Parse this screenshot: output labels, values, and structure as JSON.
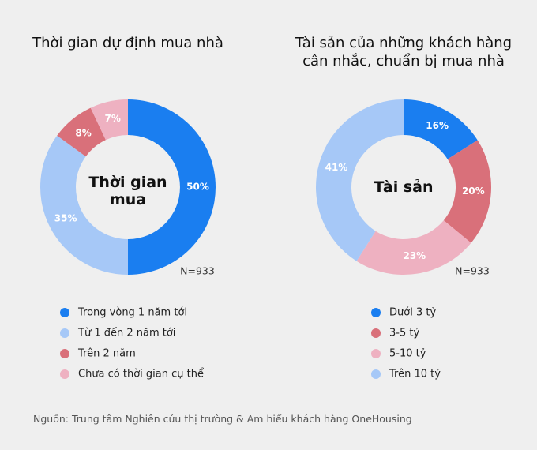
{
  "chart_data": [
    {
      "type": "donut",
      "title": "Thời gian dự định mua nhà",
      "center_label": "Thời gian mua",
      "note": "N=933",
      "categories": [
        "Trong vòng 1 năm tới",
        "Từ 1 đến 2 năm tới",
        "Trên 2 năm",
        "Chưa có thời gian cụ thể"
      ],
      "values": [
        50,
        35,
        8,
        7
      ],
      "value_labels": [
        "50%",
        "35%",
        "8%",
        "7%"
      ],
      "colors": [
        "#1a7ef0",
        "#a6c8f7",
        "#d9707a",
        "#eeb1c1"
      ]
    },
    {
      "type": "donut",
      "title": "Tài sản của những khách hàng cân nhắc, chuẩn bị mua nhà",
      "center_label": "Tài sản",
      "note": "N=933",
      "categories": [
        "Dưới 3 tỷ",
        "3-5 tỷ",
        "5-10 tỷ",
        "Trên 10 tỷ"
      ],
      "values": [
        16,
        20,
        23,
        41
      ],
      "value_labels": [
        "16%",
        "20%",
        "23%",
        "41%"
      ],
      "colors": [
        "#1a7ef0",
        "#d9707a",
        "#eeb1c1",
        "#a6c8f7"
      ]
    }
  ],
  "source": "Nguồn: Trung tâm Nghiên cứu thị trường & Am hiểu khách hàng OneHousing"
}
